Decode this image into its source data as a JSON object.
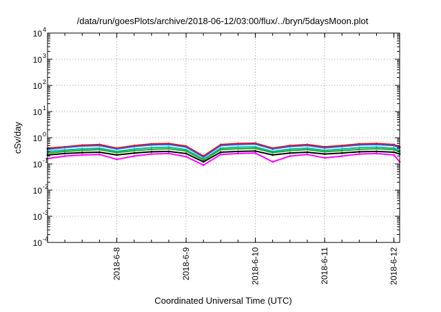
{
  "chart_data": {
    "type": "line",
    "title": "/data/run/goesPlots/archive/2018-06-12/03:00/flux/../bryn/5daysMoon.plot",
    "xlabel": "Coordinated Universal Time (UTC)",
    "ylabel": "cSv/day",
    "yscale": "log",
    "ylim": [
      0.0001,
      10000
    ],
    "xlim": [
      "2018-06-07T00:00",
      "2018-06-12T02:00"
    ],
    "x_ticks": [
      "2018-6-8",
      "2018-6-9",
      "2018-6-10",
      "2018-6-11",
      "2018-6-12"
    ],
    "y_ticks": [
      {
        "base": "10",
        "exp": "-4"
      },
      {
        "base": "10",
        "exp": "-3"
      },
      {
        "base": "10",
        "exp": "-2"
      },
      {
        "base": "10",
        "exp": "-1"
      },
      {
        "base": "10",
        "exp": "0"
      },
      {
        "base": "10",
        "exp": "1"
      },
      {
        "base": "10",
        "exp": "2"
      },
      {
        "base": "10",
        "exp": "3"
      },
      {
        "base": "10",
        "exp": "4"
      }
    ],
    "grid": true,
    "legend": "none",
    "x_points": [
      "2018-06-07T00:00",
      "2018-06-07T06:00",
      "2018-06-07T12:00",
      "2018-06-07T18:00",
      "2018-06-08T00:00",
      "2018-06-08T06:00",
      "2018-06-08T12:00",
      "2018-06-08T18:00",
      "2018-06-09T00:00",
      "2018-06-09T06:00",
      "2018-06-09T12:00",
      "2018-06-09T18:00",
      "2018-06-10T00:00",
      "2018-06-10T06:00",
      "2018-06-10T12:00",
      "2018-06-10T18:00",
      "2018-06-11T00:00",
      "2018-06-11T06:00",
      "2018-06-11T12:00",
      "2018-06-11T18:00",
      "2018-06-12T00:00",
      "2018-06-12T02:00"
    ],
    "series": [
      {
        "color": "#ff0000",
        "values": [
          0.4,
          0.45,
          0.52,
          0.55,
          0.4,
          0.5,
          0.58,
          0.6,
          0.48,
          0.2,
          0.55,
          0.6,
          0.62,
          0.4,
          0.5,
          0.55,
          0.45,
          0.5,
          0.58,
          0.6,
          0.55,
          0.45
        ]
      },
      {
        "color": "#2f5fd8",
        "values": [
          0.36,
          0.42,
          0.48,
          0.5,
          0.37,
          0.46,
          0.53,
          0.55,
          0.44,
          0.18,
          0.5,
          0.55,
          0.57,
          0.37,
          0.46,
          0.5,
          0.41,
          0.46,
          0.53,
          0.55,
          0.5,
          0.41
        ]
      },
      {
        "color": "#00b8b8",
        "values": [
          0.3,
          0.34,
          0.38,
          0.4,
          0.3,
          0.37,
          0.42,
          0.44,
          0.35,
          0.15,
          0.4,
          0.44,
          0.45,
          0.3,
          0.37,
          0.4,
          0.33,
          0.37,
          0.42,
          0.44,
          0.4,
          0.33
        ]
      },
      {
        "color": "#22aa22",
        "values": [
          0.26,
          0.3,
          0.33,
          0.35,
          0.27,
          0.32,
          0.36,
          0.38,
          0.31,
          0.14,
          0.35,
          0.38,
          0.39,
          0.27,
          0.32,
          0.35,
          0.29,
          0.32,
          0.36,
          0.38,
          0.35,
          0.29
        ]
      },
      {
        "color": "#000000",
        "values": [
          0.22,
          0.25,
          0.27,
          0.28,
          0.22,
          0.26,
          0.29,
          0.3,
          0.25,
          0.12,
          0.28,
          0.3,
          0.31,
          0.22,
          0.26,
          0.28,
          0.24,
          0.26,
          0.29,
          0.3,
          0.28,
          0.24
        ]
      },
      {
        "color": "#ff00ff",
        "values": [
          0.16,
          0.2,
          0.22,
          0.23,
          0.15,
          0.2,
          0.24,
          0.25,
          0.19,
          0.09,
          0.23,
          0.25,
          0.26,
          0.12,
          0.2,
          0.23,
          0.17,
          0.2,
          0.24,
          0.25,
          0.22,
          0.12
        ]
      }
    ]
  }
}
